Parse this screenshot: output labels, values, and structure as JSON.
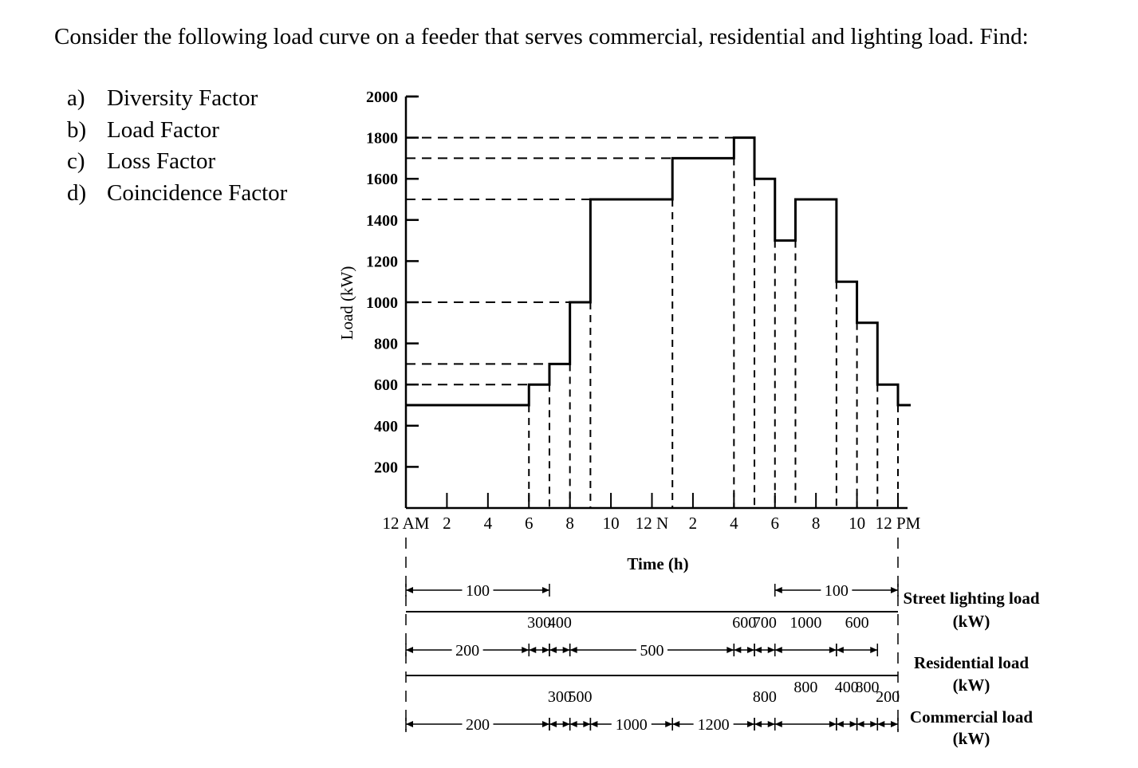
{
  "problem": {
    "intro": "Consider the following load curve on a feeder that serves commercial, residential and lighting load. Find:",
    "questions": [
      {
        "label": "a)",
        "text": "Diversity Factor"
      },
      {
        "label": "b)",
        "text": "Load Factor"
      },
      {
        "label": "c)",
        "text": "Loss Factor"
      },
      {
        "label": "d)",
        "text": "Coincidence Factor"
      }
    ]
  },
  "chart_data": {
    "type": "line",
    "style": "step",
    "ylabel": "Load (kW)",
    "xlabel": "Time (h)",
    "ylim": [
      0,
      2000
    ],
    "yticks": [
      200,
      400,
      600,
      800,
      1000,
      1200,
      1400,
      1600,
      1800,
      2000
    ],
    "xlim": [
      0,
      24
    ],
    "xtick_labels": [
      "12 AM",
      "2",
      "4",
      "6",
      "8",
      "10",
      "12 N",
      "2",
      "4",
      "6",
      "8",
      "10",
      "12 PM"
    ],
    "series": [
      {
        "x": [
          0,
          6,
          7,
          8,
          9,
          13,
          16,
          17,
          18,
          19,
          21,
          22,
          23,
          24
        ],
        "y": [
          500,
          600,
          700,
          1000,
          1500,
          1700,
          1800,
          1600,
          1300,
          1500,
          1100,
          900,
          600,
          500
        ]
      }
    ]
  },
  "profiles": [
    {
      "name": "Street lighting load",
      "unit": "(kW)",
      "segments": [
        {
          "start": 0,
          "end": 7,
          "value": "100"
        },
        {
          "start": 18,
          "end": 24,
          "value": "100"
        }
      ]
    },
    {
      "name": "Residential load",
      "unit": "(kW)",
      "segments": [
        {
          "start": 0,
          "end": 6,
          "value": "200"
        },
        {
          "start": 6,
          "end": 7,
          "value": "300"
        },
        {
          "start": 7,
          "end": 8,
          "value": "400"
        },
        {
          "start": 8,
          "end": 16,
          "value": "500"
        },
        {
          "start": 16,
          "end": 17,
          "value": "600"
        },
        {
          "start": 17,
          "end": 18,
          "value": "700"
        },
        {
          "start": 18,
          "end": 21,
          "value": "1000"
        },
        {
          "start": 21,
          "end": 23,
          "value": "600"
        }
      ]
    },
    {
      "name": "Commercial load",
      "unit": "(kW)",
      "segments": [
        {
          "start": 0,
          "end": 7,
          "value": "200"
        },
        {
          "start": 7,
          "end": 8,
          "value": "300"
        },
        {
          "start": 8,
          "end": 9,
          "value": "500"
        },
        {
          "start": 9,
          "end": 13,
          "value": "1000"
        },
        {
          "start": 13,
          "end": 17,
          "value": "1200"
        },
        {
          "start": 17,
          "end": 18,
          "value": "800"
        },
        {
          "start": 18,
          "end": 21,
          "value": "800"
        },
        {
          "start": 21,
          "end": 22,
          "value": "400"
        },
        {
          "start": 22,
          "end": 23,
          "value": "800"
        },
        {
          "start": 23,
          "end": 24,
          "value": "200"
        }
      ]
    }
  ]
}
